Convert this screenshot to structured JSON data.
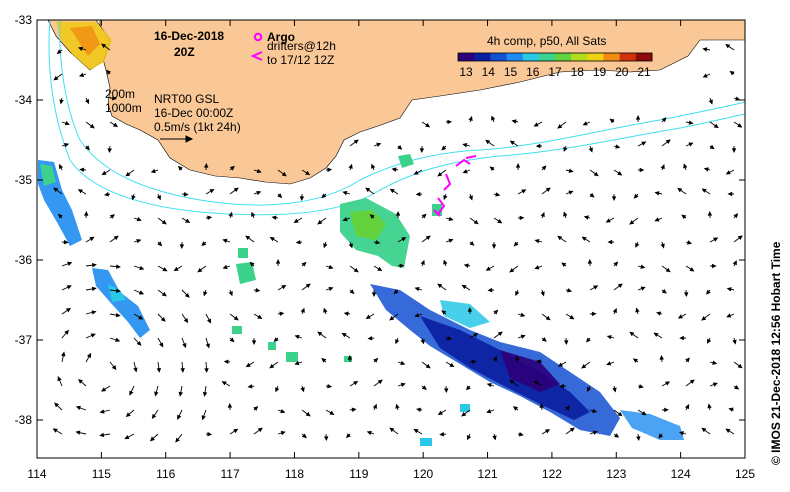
{
  "header": {
    "date": "16-Dec-2018",
    "hour": "20Z"
  },
  "legend": {
    "argo_label": "Argo",
    "drifters_line1": "drifters@12h",
    "drifters_line2": "to 17/12 12Z",
    "composite_title": "4h comp, p50, All Sats",
    "colorbar_ticks": [
      "13",
      "14",
      "15",
      "16",
      "17",
      "18",
      "19",
      "20",
      "21"
    ],
    "colorbar_colors": [
      "#2c007a",
      "#0a1ea0",
      "#1450d2",
      "#1e8cf0",
      "#28c8e6",
      "#3cd28c",
      "#64d23c",
      "#b4dc1e",
      "#f0d214",
      "#f08c14",
      "#d2320a",
      "#8c0a0a"
    ]
  },
  "contours": {
    "label_200": "200m",
    "label_1000": "1000m"
  },
  "product": {
    "line1": "NRT00 GSL",
    "line2": "16-Dec 00:00Z",
    "scale_text": "0.5m/s (1kt 24h)"
  },
  "axes": {
    "x_ticks": [
      "114",
      "115",
      "116",
      "117",
      "118",
      "119",
      "120",
      "121",
      "122",
      "123",
      "124",
      "125"
    ],
    "y_ticks": [
      "-33",
      "-34",
      "-35",
      "-36",
      "-37",
      "-38"
    ]
  },
  "credit": "© IMOS 21-Dec-2018 12:56 Hobart Time",
  "colors": {
    "land": "#fac896",
    "contour": "#40e0f0",
    "drifter": "#ff00ff",
    "frame": "#000000"
  }
}
